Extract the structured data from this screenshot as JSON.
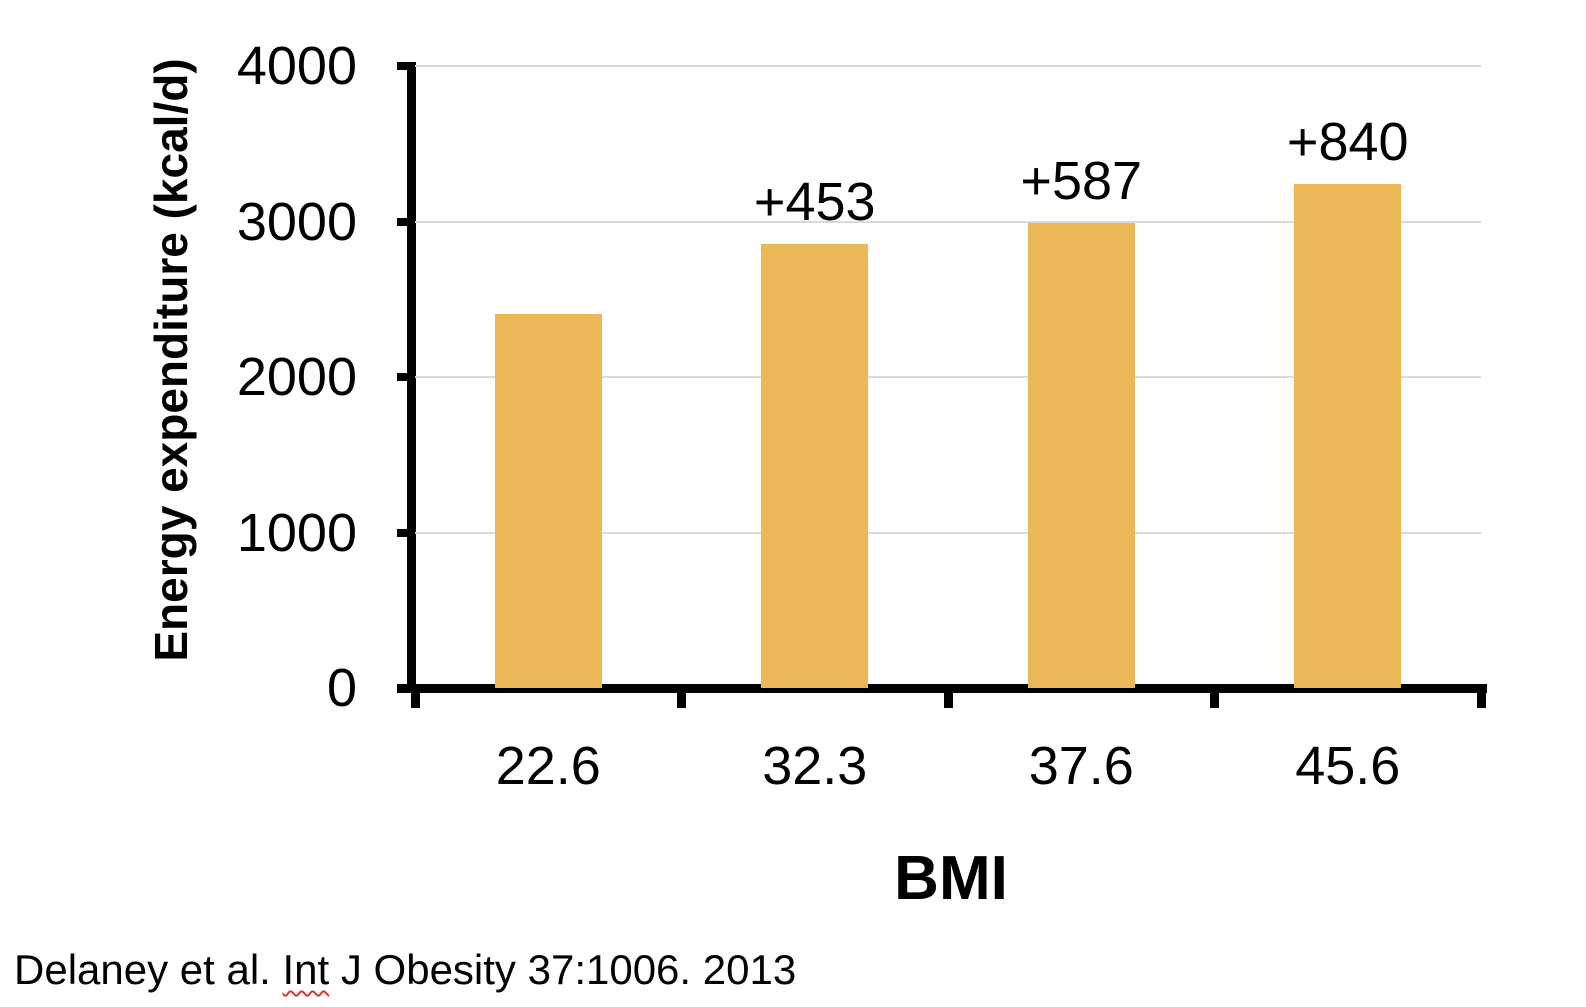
{
  "chart_data": {
    "type": "bar",
    "categories": [
      "22.6",
      "32.3",
      "37.6",
      "45.6"
    ],
    "values": [
      2404,
      2857,
      2991,
      3244
    ],
    "bar_labels": [
      "",
      "+453",
      "+587",
      "+840"
    ],
    "xlabel": "BMI",
    "ylabel": "Energy expenditure (kcal/d)",
    "ylim": [
      0,
      4000
    ],
    "yticks": [
      0,
      1000,
      2000,
      3000,
      4000
    ],
    "grid": true,
    "legend_position": "none",
    "bar_color": "#ECB756",
    "gridline_color": "#DADADA",
    "axis_color": "#000000",
    "text_color": "#000000"
  },
  "citation": {
    "prefix": "Delaney et al. ",
    "misspelled_word": "Int",
    "suffix": " J Obesity 37:1006. 2013"
  }
}
